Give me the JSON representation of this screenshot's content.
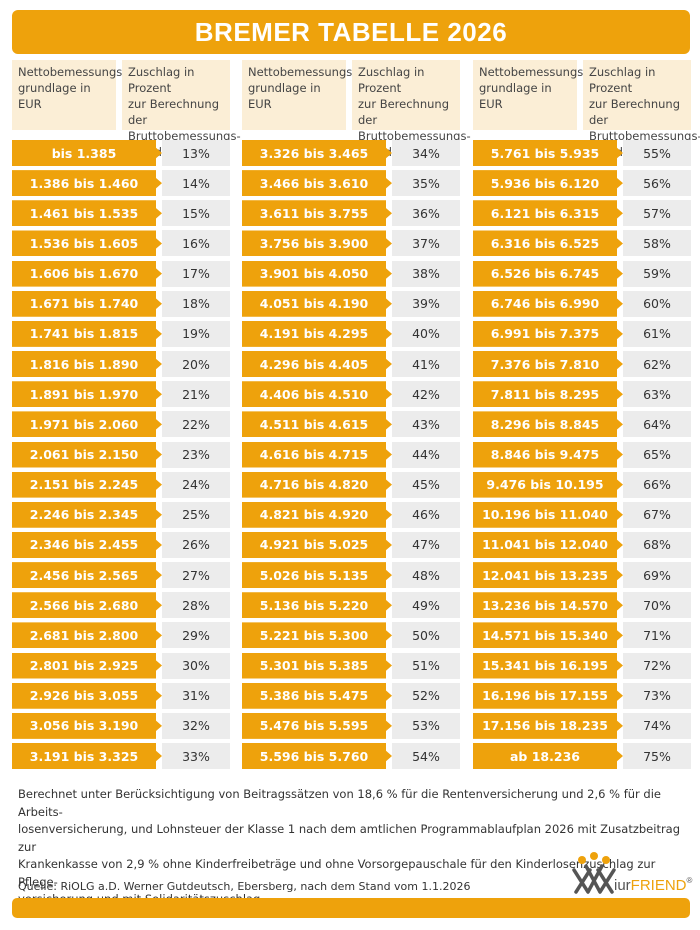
{
  "title": "BREMER TABELLE 2026",
  "tables": [
    {
      "headers": [
        "Nettobemessungs-\ngrundlage in EUR",
        "Zuschlag in Prozent\nzur Berechnung der\nBruttobemessungs-\ngrundlage"
      ],
      "rows": [
        [
          "bis 1.385",
          "13%"
        ],
        [
          "1.386 bis 1.460",
          "14%"
        ],
        [
          "1.461 bis 1.535",
          "15%"
        ],
        [
          "1.536 bis 1.605",
          "16%"
        ],
        [
          "1.606 bis 1.670",
          "17%"
        ],
        [
          "1.671 bis 1.740",
          "18%"
        ],
        [
          "1.741 bis 1.815",
          "19%"
        ],
        [
          "1.816 bis 1.890",
          "20%"
        ],
        [
          "1.891 bis 1.970",
          "21%"
        ],
        [
          "1.971 bis 2.060",
          "22%"
        ],
        [
          "2.061 bis 2.150",
          "23%"
        ],
        [
          "2.151 bis 2.245",
          "24%"
        ],
        [
          "2.246 bis 2.345",
          "25%"
        ],
        [
          "2.346 bis 2.455",
          "26%"
        ],
        [
          "2.456 bis 2.565",
          "27%"
        ],
        [
          "2.566 bis 2.680",
          "28%"
        ],
        [
          "2.681 bis 2.800",
          "29%"
        ],
        [
          "2.801 bis 2.925",
          "30%"
        ],
        [
          "2.926 bis 3.055",
          "31%"
        ],
        [
          "3.056 bis 3.190",
          "32%"
        ],
        [
          "3.191 bis 3.325",
          "33%"
        ]
      ]
    },
    {
      "headers": [
        "Nettobemessungs-\ngrundlage in EUR",
        "Zuschlag in Prozent\nzur Berechnung der\nBruttobemessungs-\ngrundlage"
      ],
      "rows": [
        [
          "3.326 bis 3.465",
          "34%"
        ],
        [
          "3.466 bis 3.610",
          "35%"
        ],
        [
          "3.611 bis 3.755",
          "36%"
        ],
        [
          "3.756 bis 3.900",
          "37%"
        ],
        [
          "3.901 bis 4.050",
          "38%"
        ],
        [
          "4.051 bis 4.190",
          "39%"
        ],
        [
          "4.191 bis 4.295",
          "40%"
        ],
        [
          "4.296 bis 4.405",
          "41%"
        ],
        [
          "4.406 bis 4.510",
          "42%"
        ],
        [
          "4.511 bis 4.615",
          "43%"
        ],
        [
          "4.616 bis 4.715",
          "44%"
        ],
        [
          "4.716 bis 4.820",
          "45%"
        ],
        [
          "4.821 bis 4.920",
          "46%"
        ],
        [
          "4.921 bis 5.025",
          "47%"
        ],
        [
          "5.026 bis 5.135",
          "48%"
        ],
        [
          "5.136 bis 5.220",
          "49%"
        ],
        [
          "5.221 bis 5.300",
          "50%"
        ],
        [
          "5.301 bis 5.385",
          "51%"
        ],
        [
          "5.386 bis 5.475",
          "52%"
        ],
        [
          "5.476 bis 5.595",
          "53%"
        ],
        [
          "5.596 bis 5.760",
          "54%"
        ]
      ]
    },
    {
      "headers": [
        "Nettobemessungs-\ngrundlage in EUR",
        "Zuschlag in Prozent\nzur Berechnung der\nBruttobemessungs-\ngrundlage"
      ],
      "rows": [
        [
          "5.761 bis 5.935",
          "55%"
        ],
        [
          "5.936 bis 6.120",
          "56%"
        ],
        [
          "6.121 bis 6.315",
          "57%"
        ],
        [
          "6.316 bis 6.525",
          "58%"
        ],
        [
          "6.526 bis 6.745",
          "59%"
        ],
        [
          "6.746 bis 6.990",
          "60%"
        ],
        [
          "6.991 bis 7.375",
          "61%"
        ],
        [
          "7.376 bis 7.810",
          "62%"
        ],
        [
          "7.811 bis 8.295",
          "63%"
        ],
        [
          "8.296 bis 8.845",
          "64%"
        ],
        [
          "8.846 bis 9.475",
          "65%"
        ],
        [
          "9.476 bis 10.195",
          "66%"
        ],
        [
          "10.196 bis 11.040",
          "67%"
        ],
        [
          "11.041 bis 12.040",
          "68%"
        ],
        [
          "12.041 bis 13.235",
          "69%"
        ],
        [
          "13.236 bis 14.570",
          "70%"
        ],
        [
          "14.571 bis 15.340",
          "71%"
        ],
        [
          "15.341 bis 16.195",
          "72%"
        ],
        [
          "16.196 bis 17.155",
          "73%"
        ],
        [
          "17.156 bis 18.235",
          "74%"
        ],
        [
          "ab 18.236",
          "75%"
        ]
      ]
    }
  ],
  "footnote": "Berechnet unter Berücksichtigung von Beitragssätzen von 18,6 % für die Rentenversicherung und 2,6 % für die Arbeits-\nlosenversicherung, und Lohnsteuer der Klasse 1 nach dem amtlichen Programmablaufplan 2026 mit Zusatzbeitrag zur\nKrankenkasse von 2,9 % ohne Kinderfreibeträge und ohne Vorsorgepauschale für den Kinderlosenzuschlag zur Pflege-\nversicherung und mit Solidaritätszuschlag",
  "source": "Quelle: RiOLG a.D. Werner Gutdeutsch, Ebersberg, nach dem Stand vom 1.1.2026",
  "logo": {
    "prefix": "iur",
    "name": "FRIEND",
    "mark": "®"
  }
}
